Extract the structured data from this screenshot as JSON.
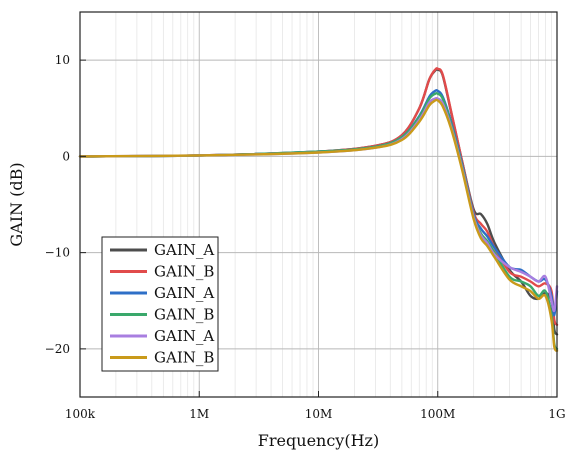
{
  "chart_data": {
    "type": "line",
    "xlabel": "Frequency(Hz)",
    "ylabel": "GAIN (dB)",
    "x_scale": "log",
    "xlim": [
      100000,
      1000000000
    ],
    "ylim": [
      -25,
      15
    ],
    "x_ticks": [
      {
        "value": 100000,
        "label": "100k"
      },
      {
        "value": 1000000,
        "label": "1M"
      },
      {
        "value": 10000000,
        "label": "10M"
      },
      {
        "value": 100000000,
        "label": "100M"
      },
      {
        "value": 1000000000,
        "label": "1G"
      }
    ],
    "y_ticks": [
      {
        "value": 10,
        "label": "10"
      },
      {
        "value": 0,
        "label": "0"
      },
      {
        "value": -10,
        "label": "−10"
      },
      {
        "value": -20,
        "label": "−20"
      }
    ],
    "grid": true,
    "legend_position": "bottom-left",
    "series": [
      {
        "name": "GAIN_A",
        "color": "#4d4d4d",
        "points": [
          [
            100000,
            0
          ],
          [
            1000000,
            0.1
          ],
          [
            10000000,
            0.5
          ],
          [
            30000000,
            1.1
          ],
          [
            50000000,
            2.2
          ],
          [
            70000000,
            5.0
          ],
          [
            85000000,
            8.0
          ],
          [
            95000000,
            8.9
          ],
          [
            100000000,
            9.0
          ],
          [
            110000000,
            8.4
          ],
          [
            130000000,
            4.5
          ],
          [
            160000000,
            -0.5
          ],
          [
            200000000,
            -5.5
          ],
          [
            230000000,
            -6.0
          ],
          [
            260000000,
            -7.0
          ],
          [
            300000000,
            -9.0
          ],
          [
            400000000,
            -11.8
          ],
          [
            500000000,
            -13.0
          ],
          [
            600000000,
            -14.5
          ],
          [
            700000000,
            -14.8
          ],
          [
            800000000,
            -14.2
          ],
          [
            900000000,
            -15.0
          ],
          [
            950000000,
            -18.0
          ],
          [
            1000000000,
            -18.5
          ]
        ]
      },
      {
        "name": "GAIN_B",
        "color": "#e14b4b",
        "points": [
          [
            100000,
            0
          ],
          [
            1000000,
            0.1
          ],
          [
            10000000,
            0.5
          ],
          [
            30000000,
            1.1
          ],
          [
            50000000,
            2.2
          ],
          [
            70000000,
            5.0
          ],
          [
            85000000,
            8.0
          ],
          [
            95000000,
            9.0
          ],
          [
            100000000,
            9.1
          ],
          [
            110000000,
            8.5
          ],
          [
            130000000,
            4.6
          ],
          [
            160000000,
            -0.5
          ],
          [
            200000000,
            -5.8
          ],
          [
            230000000,
            -7.0
          ],
          [
            260000000,
            -7.8
          ],
          [
            300000000,
            -9.5
          ],
          [
            400000000,
            -12.0
          ],
          [
            500000000,
            -12.5
          ],
          [
            600000000,
            -13.0
          ],
          [
            700000000,
            -13.5
          ],
          [
            800000000,
            -13.2
          ],
          [
            900000000,
            -14.0
          ],
          [
            950000000,
            -17.0
          ],
          [
            1000000000,
            -17.5
          ]
        ]
      },
      {
        "name": "GAIN_A",
        "color": "#2e6fc7",
        "points": [
          [
            100000,
            0
          ],
          [
            1000000,
            0.1
          ],
          [
            10000000,
            0.5
          ],
          [
            30000000,
            1.0
          ],
          [
            50000000,
            2.0
          ],
          [
            70000000,
            4.2
          ],
          [
            85000000,
            6.2
          ],
          [
            95000000,
            6.8
          ],
          [
            100000000,
            6.8
          ],
          [
            110000000,
            6.2
          ],
          [
            130000000,
            3.5
          ],
          [
            160000000,
            -0.8
          ],
          [
            200000000,
            -6.0
          ],
          [
            230000000,
            -7.5
          ],
          [
            260000000,
            -8.3
          ],
          [
            300000000,
            -9.5
          ],
          [
            400000000,
            -11.5
          ],
          [
            500000000,
            -11.8
          ],
          [
            600000000,
            -12.5
          ],
          [
            700000000,
            -13.0
          ],
          [
            800000000,
            -12.8
          ],
          [
            900000000,
            -14.5
          ],
          [
            950000000,
            -16.5
          ],
          [
            1000000000,
            -14.0
          ]
        ]
      },
      {
        "name": "GAIN_B",
        "color": "#3aa86b",
        "points": [
          [
            100000,
            0
          ],
          [
            1000000,
            0.1
          ],
          [
            10000000,
            0.5
          ],
          [
            30000000,
            1.0
          ],
          [
            50000000,
            2.0
          ],
          [
            70000000,
            4.1
          ],
          [
            85000000,
            6.0
          ],
          [
            95000000,
            6.5
          ],
          [
            100000000,
            6.5
          ],
          [
            110000000,
            6.0
          ],
          [
            130000000,
            3.3
          ],
          [
            160000000,
            -1.0
          ],
          [
            200000000,
            -6.2
          ],
          [
            230000000,
            -8.0
          ],
          [
            260000000,
            -8.8
          ],
          [
            300000000,
            -10.0
          ],
          [
            400000000,
            -12.5
          ],
          [
            500000000,
            -13.0
          ],
          [
            600000000,
            -13.5
          ],
          [
            700000000,
            -14.5
          ],
          [
            800000000,
            -14.0
          ],
          [
            900000000,
            -16.5
          ],
          [
            950000000,
            -19.5
          ],
          [
            1000000000,
            -20.0
          ]
        ]
      },
      {
        "name": "GAIN_A",
        "color": "#a87ee0",
        "points": [
          [
            100000,
            0
          ],
          [
            1000000,
            0.1
          ],
          [
            10000000,
            0.4
          ],
          [
            30000000,
            0.9
          ],
          [
            50000000,
            1.8
          ],
          [
            70000000,
            3.8
          ],
          [
            85000000,
            5.6
          ],
          [
            95000000,
            6.0
          ],
          [
            100000000,
            6.0
          ],
          [
            110000000,
            5.5
          ],
          [
            130000000,
            3.0
          ],
          [
            160000000,
            -1.2
          ],
          [
            200000000,
            -6.3
          ],
          [
            230000000,
            -8.2
          ],
          [
            260000000,
            -9.0
          ],
          [
            300000000,
            -10.2
          ],
          [
            400000000,
            -11.5
          ],
          [
            500000000,
            -12.0
          ],
          [
            600000000,
            -12.5
          ],
          [
            700000000,
            -13.0
          ],
          [
            800000000,
            -12.5
          ],
          [
            900000000,
            -15.0
          ],
          [
            950000000,
            -16.0
          ],
          [
            1000000000,
            -13.5
          ]
        ]
      },
      {
        "name": "GAIN_B",
        "color": "#c99a1a",
        "points": [
          [
            100000,
            0
          ],
          [
            1000000,
            0.1
          ],
          [
            10000000,
            0.4
          ],
          [
            30000000,
            0.9
          ],
          [
            50000000,
            1.7
          ],
          [
            70000000,
            3.6
          ],
          [
            85000000,
            5.3
          ],
          [
            95000000,
            5.8
          ],
          [
            100000000,
            5.8
          ],
          [
            110000000,
            5.2
          ],
          [
            130000000,
            2.8
          ],
          [
            160000000,
            -1.4
          ],
          [
            200000000,
            -6.5
          ],
          [
            230000000,
            -8.5
          ],
          [
            260000000,
            -9.3
          ],
          [
            300000000,
            -10.5
          ],
          [
            400000000,
            -12.8
          ],
          [
            500000000,
            -13.5
          ],
          [
            600000000,
            -14.0
          ],
          [
            700000000,
            -14.8
          ],
          [
            800000000,
            -14.5
          ],
          [
            900000000,
            -17.0
          ],
          [
            950000000,
            -19.8
          ],
          [
            1000000000,
            -20.2
          ]
        ]
      }
    ]
  }
}
